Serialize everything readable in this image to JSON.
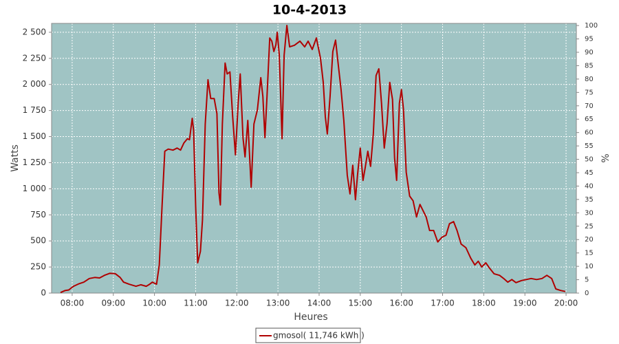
{
  "chart_data": {
    "type": "line",
    "title": "10-4-2013",
    "x_label": "Heures",
    "y_label": "Watts",
    "y2_label": "%",
    "x": [
      "07:43",
      "07:50",
      "07:55",
      "08:02",
      "08:10",
      "08:17",
      "08:25",
      "08:33",
      "08:40",
      "08:47",
      "08:55",
      "09:03",
      "09:10",
      "09:15",
      "09:23",
      "09:33",
      "09:40",
      "09:48",
      "09:53",
      "09:57",
      "10:03",
      "10:07",
      "10:11",
      "10:15",
      "10:20",
      "10:27",
      "10:33",
      "10:38",
      "10:43",
      "10:48",
      "10:51",
      "10:55",
      "10:57",
      "11:00",
      "11:03",
      "11:07",
      "11:10",
      "11:14",
      "11:18",
      "11:22",
      "11:27",
      "11:31",
      "11:34",
      "11:36",
      "11:39",
      "11:43",
      "11:46",
      "11:50",
      "11:54",
      "11:58",
      "12:02",
      "12:05",
      "12:09",
      "12:12",
      "12:16",
      "12:21",
      "12:25",
      "12:30",
      "12:35",
      "12:38",
      "12:41",
      "12:44",
      "12:48",
      "12:51",
      "12:54",
      "12:57",
      "12:59",
      "13:02",
      "13:06",
      "13:09",
      "13:13",
      "13:17",
      "13:24",
      "13:32",
      "13:39",
      "13:44",
      "13:50",
      "13:56",
      "14:02",
      "14:06",
      "14:09",
      "14:12",
      "14:16",
      "14:20",
      "14:24",
      "14:28",
      "14:32",
      "14:36",
      "14:41",
      "14:45",
      "14:49",
      "14:53",
      "14:56",
      "15:00",
      "15:04",
      "15:07",
      "15:11",
      "15:15",
      "15:19",
      "15:23",
      "15:27",
      "15:31",
      "15:35",
      "15:39",
      "15:43",
      "15:47",
      "15:50",
      "15:53",
      "15:57",
      "16:00",
      "16:03",
      "16:07",
      "16:12",
      "16:17",
      "16:22",
      "16:27",
      "16:36",
      "16:41",
      "16:47",
      "16:53",
      "16:59",
      "17:05",
      "17:10",
      "17:16",
      "17:21",
      "17:27",
      "17:34",
      "17:41",
      "17:47",
      "17:52",
      "17:57",
      "18:03",
      "18:09",
      "18:15",
      "18:23",
      "18:29",
      "18:35",
      "18:41",
      "18:47",
      "18:55",
      "19:02",
      "19:09",
      "19:17",
      "19:25",
      "19:32",
      "19:39",
      "19:45",
      "19:52",
      "19:59"
    ],
    "series": [
      {
        "name": "gmosol( 11,746 kWh )",
        "color": "#b00000",
        "values": [
          5,
          25,
          30,
          65,
          90,
          105,
          140,
          150,
          145,
          170,
          190,
          185,
          150,
          105,
          85,
          65,
          80,
          65,
          85,
          105,
          85,
          270,
          830,
          1360,
          1380,
          1370,
          1390,
          1370,
          1440,
          1480,
          1470,
          1675,
          1560,
          830,
          290,
          400,
          700,
          1620,
          2045,
          1865,
          1865,
          1720,
          960,
          845,
          1620,
          2205,
          2100,
          2120,
          1690,
          1325,
          1820,
          2100,
          1490,
          1305,
          1655,
          1015,
          1620,
          1755,
          2065,
          1885,
          1490,
          1885,
          2445,
          2415,
          2315,
          2380,
          2500,
          2280,
          1480,
          2280,
          2565,
          2360,
          2375,
          2415,
          2360,
          2415,
          2335,
          2445,
          2250,
          2020,
          1690,
          1525,
          1885,
          2315,
          2425,
          2185,
          1950,
          1655,
          1130,
          950,
          1225,
          895,
          1130,
          1390,
          1080,
          1195,
          1360,
          1215,
          1525,
          2085,
          2150,
          1820,
          1390,
          1620,
          2020,
          1855,
          1295,
          1080,
          1820,
          1950,
          1755,
          1160,
          930,
          885,
          730,
          850,
          730,
          600,
          600,
          490,
          535,
          555,
          665,
          685,
          600,
          470,
          435,
          335,
          270,
          305,
          250,
          290,
          235,
          185,
          170,
          140,
          105,
          130,
          100,
          120,
          130,
          140,
          130,
          140,
          170,
          140,
          40,
          25,
          15
        ]
      }
    ],
    "xlim": [
      "07:30",
      "20:15"
    ],
    "xticks": [
      "08:00",
      "09:00",
      "10:00",
      "11:00",
      "12:00",
      "13:00",
      "14:00",
      "15:00",
      "16:00",
      "17:00",
      "18:00",
      "19:00",
      "20:00"
    ],
    "ylim": [
      0,
      2585
    ],
    "yticks": [
      0,
      250,
      500,
      750,
      {
        "value": 1000,
        "label": "1 000"
      },
      {
        "value": 1250,
        "label": "1 250"
      },
      {
        "value": 1500,
        "label": "1 500"
      },
      {
        "value": 1750,
        "label": "1 750"
      },
      {
        "value": 2000,
        "label": "2 000"
      },
      {
        "value": 2250,
        "label": "2 250"
      },
      {
        "value": 2500,
        "label": "2 500"
      }
    ],
    "y2lim": [
      0,
      100.8
    ],
    "y2ticks": [
      0,
      5,
      10,
      15,
      20,
      25,
      30,
      35,
      40,
      45,
      50,
      55,
      60,
      65,
      70,
      75,
      80,
      85,
      90,
      95,
      100
    ],
    "grid": true,
    "plot_background": "#a0c4c4"
  }
}
